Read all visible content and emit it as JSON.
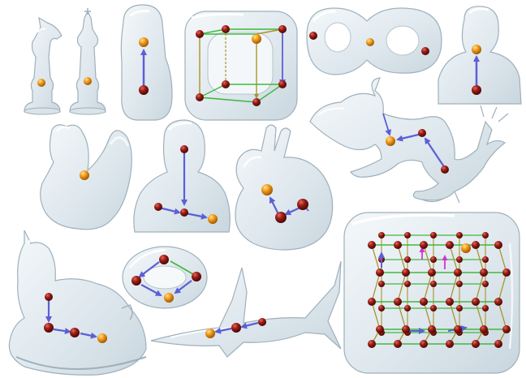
{
  "figure": {
    "background": "#ffffff",
    "colors": {
      "glass_fill": "#e6eef3",
      "glass_edge": "#9fb0bb",
      "glass_highlight": "#ffffff",
      "node_red": "#8b1414",
      "node_orange": "#f2a01c",
      "arrow_blue": "#5b5fd6",
      "edge_green": "#3fb83f",
      "edge_olive": "#a7942b",
      "arrow_magenta": "#d233d2"
    },
    "models": [
      {
        "name": "chess-knight",
        "nodes": 1
      },
      {
        "name": "chess-queen",
        "nodes": 1
      },
      {
        "name": "moai-head",
        "nodes": 2
      },
      {
        "name": "hollow-cube",
        "nodes": 8
      },
      {
        "name": "double-torus",
        "nodes": 3
      },
      {
        "name": "bust",
        "nodes": 2
      },
      {
        "name": "chinese-dragon",
        "nodes": 4
      },
      {
        "name": "squirrel",
        "nodes": 1
      },
      {
        "name": "bimba-bust",
        "nodes": 4
      },
      {
        "name": "stanford-bunny",
        "nodes": 4
      },
      {
        "name": "rocking-horse",
        "nodes": 4
      },
      {
        "name": "torus-ring",
        "nodes": 4
      },
      {
        "name": "swordfish",
        "nodes": 4
      },
      {
        "name": "lattice-cube",
        "nodes": 48
      }
    ]
  }
}
